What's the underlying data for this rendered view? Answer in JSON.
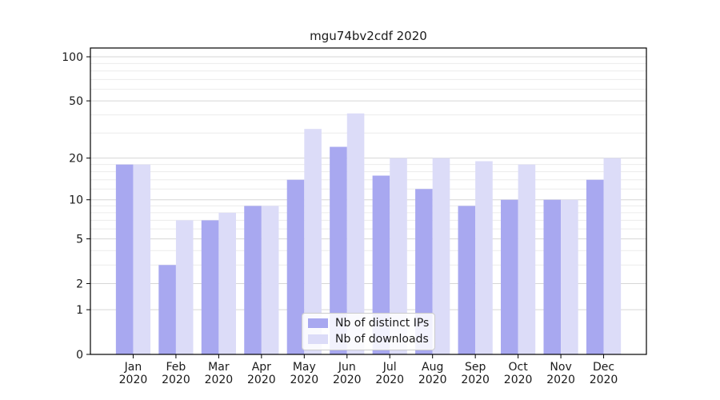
{
  "title": "mgu74bv2cdf 2020",
  "chart_data": {
    "type": "bar",
    "title": "mgu74bv2cdf 2020",
    "categories": [
      "Jan",
      "Feb",
      "Mar",
      "Apr",
      "May",
      "Jun",
      "Jul",
      "Aug",
      "Sep",
      "Oct",
      "Nov",
      "Dec"
    ],
    "category_year": "2020",
    "series": [
      {
        "name": "Nb of distinct IPs",
        "color": "#a8a8f0",
        "values": [
          18,
          3,
          7,
          9,
          14,
          24,
          15,
          12,
          9,
          10,
          10,
          14
        ]
      },
      {
        "name": "Nb of downloads",
        "color": "#dcdcf8",
        "values": [
          18,
          7,
          8,
          9,
          32,
          41,
          20,
          20,
          19,
          18,
          10,
          20
        ]
      }
    ],
    "xlabel": "",
    "ylabel": "",
    "yscale": "log10(value+1)",
    "yticks": [
      0,
      1,
      2,
      5,
      10,
      20,
      50,
      100
    ],
    "minor_gridline_values": [
      3,
      4,
      6,
      7,
      8,
      9,
      12,
      14,
      16,
      18,
      30,
      40,
      60,
      70,
      80,
      90
    ],
    "ylim": [
      0,
      112
    ],
    "grid": true,
    "legend_position": "lower center"
  },
  "legend": {
    "items": [
      {
        "label": "Nb of distinct IPs",
        "color": "#a8a8f0"
      },
      {
        "label": "Nb of downloads",
        "color": "#dcdcf8"
      }
    ]
  },
  "colors": {
    "bar_ips": "#a8a8f0",
    "bar_downloads": "#dcdcf8",
    "grid_major": "#d6d6d6",
    "grid_minor": "#ececec",
    "axis": "#000000",
    "text": "#1a1a1a",
    "background": "#ffffff"
  }
}
